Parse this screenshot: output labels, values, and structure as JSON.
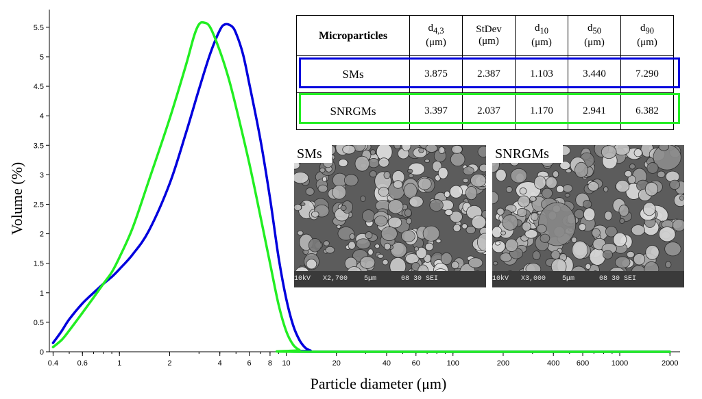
{
  "chart_data": {
    "type": "line",
    "xscale": "log",
    "xlim": [
      0.38,
      2300
    ],
    "ylim": [
      0,
      5.8
    ],
    "xlabel": "Particle diameter (μm)",
    "ylabel": "Volume (%)",
    "x_ticks": [
      0.4,
      0.6,
      1,
      2,
      4,
      6,
      8,
      10,
      20,
      40,
      60,
      100,
      200,
      400,
      600,
      1000,
      2000
    ],
    "x_tick_labels": [
      "0.4",
      "0.6",
      "1",
      "2",
      "4",
      "6",
      "8",
      "10",
      "20",
      "40",
      "60",
      "100",
      "200",
      "400",
      "600",
      "1000",
      "2000"
    ],
    "y_ticks": [
      0,
      0.5,
      1,
      1.5,
      2,
      2.5,
      3,
      3.5,
      4,
      4.5,
      5,
      5.5
    ],
    "y_tick_labels": [
      "0",
      "0.5",
      "1",
      "1.5",
      "2",
      "2.5",
      "3",
      "3.5",
      "4",
      "4.5",
      "5",
      "5.5"
    ],
    "series": [
      {
        "name": "SMs",
        "color": "#0000dd",
        "points": [
          [
            0.4,
            0.15
          ],
          [
            0.45,
            0.35
          ],
          [
            0.5,
            0.55
          ],
          [
            0.6,
            0.82
          ],
          [
            0.7,
            1.0
          ],
          [
            0.8,
            1.15
          ],
          [
            0.9,
            1.27
          ],
          [
            1.0,
            1.4
          ],
          [
            1.2,
            1.65
          ],
          [
            1.5,
            2.05
          ],
          [
            2.0,
            2.85
          ],
          [
            2.5,
            3.7
          ],
          [
            3.0,
            4.45
          ],
          [
            3.5,
            5.05
          ],
          [
            4.0,
            5.45
          ],
          [
            4.3,
            5.55
          ],
          [
            4.7,
            5.52
          ],
          [
            5.0,
            5.4
          ],
          [
            5.5,
            5.05
          ],
          [
            6.0,
            4.55
          ],
          [
            7.0,
            3.6
          ],
          [
            8.0,
            2.6
          ],
          [
            9.0,
            1.6
          ],
          [
            10.0,
            0.9
          ],
          [
            11.0,
            0.45
          ],
          [
            12.0,
            0.2
          ],
          [
            13.0,
            0.07
          ],
          [
            14.0,
            0.02
          ],
          [
            15.0,
            0.0
          ],
          [
            2000,
            0.0
          ]
        ]
      },
      {
        "name": "SNRGMs",
        "color": "#22ee22",
        "points": [
          [
            0.4,
            0.08
          ],
          [
            0.45,
            0.2
          ],
          [
            0.5,
            0.36
          ],
          [
            0.6,
            0.66
          ],
          [
            0.7,
            0.92
          ],
          [
            0.8,
            1.15
          ],
          [
            0.9,
            1.35
          ],
          [
            1.0,
            1.6
          ],
          [
            1.2,
            2.1
          ],
          [
            1.5,
            2.9
          ],
          [
            2.0,
            3.95
          ],
          [
            2.5,
            4.85
          ],
          [
            2.8,
            5.35
          ],
          [
            3.0,
            5.55
          ],
          [
            3.2,
            5.58
          ],
          [
            3.5,
            5.5
          ],
          [
            4.0,
            5.1
          ],
          [
            4.5,
            4.65
          ],
          [
            5.0,
            4.15
          ],
          [
            6.0,
            3.2
          ],
          [
            7.0,
            2.3
          ],
          [
            8.0,
            1.5
          ],
          [
            9.0,
            0.8
          ],
          [
            10.0,
            0.35
          ],
          [
            11.0,
            0.12
          ],
          [
            12.0,
            0.03
          ],
          [
            13.0,
            0.0
          ],
          [
            2000,
            0.0
          ]
        ]
      }
    ]
  },
  "table": {
    "headers": {
      "microparticles": "Microparticles",
      "d43_main": "d",
      "d43_sub": "4,3",
      "d43_unit": "(μm)",
      "stdev_main": "StDev",
      "stdev_unit": "(μm)",
      "d10_main": "d",
      "d10_sub": "10",
      "d10_unit": "(μm)",
      "d50_main": "d",
      "d50_sub": "50",
      "d50_unit": "(μm)",
      "d90_main": "d",
      "d90_sub": "90",
      "d90_unit": "(μm)"
    },
    "rows": [
      {
        "name": "SMs",
        "d43": "3.875",
        "stdev": "2.387",
        "d10": "1.103",
        "d50": "3.440",
        "d90": "7.290",
        "outline_color": "#0000dd"
      },
      {
        "name": "SNRGMs",
        "d43": "3.397",
        "stdev": "2.037",
        "d10": "1.170",
        "d50": "2.941",
        "d90": "6.382",
        "outline_color": "#22ee22"
      }
    ]
  },
  "images": [
    {
      "caption": "SMs",
      "scale_bar_text": "10kV   X2,700    5μm      08 30 SEI"
    },
    {
      "caption": "SNRGMs",
      "scale_bar_text": "10kV   X3,000    5μm      08 30 SEI"
    }
  ]
}
